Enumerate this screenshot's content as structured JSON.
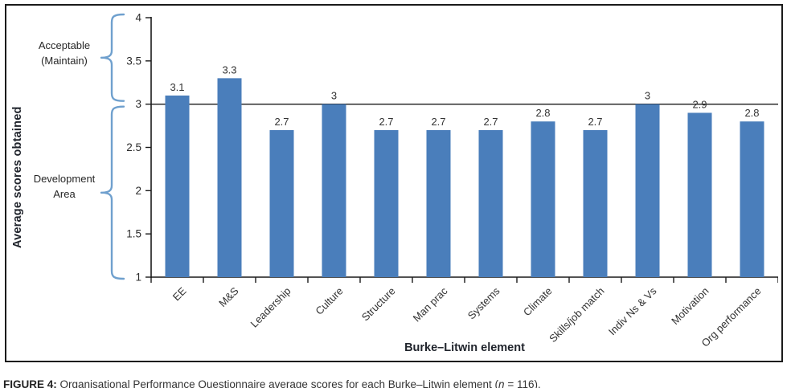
{
  "caption": {
    "label": "FIGURE 4:",
    "body": " Organisational Performance Questionnaire average scores for each Burke–Litwin element (",
    "n_symbol": "n",
    "tail": " = 116)."
  },
  "chart_data": {
    "type": "bar",
    "title": "",
    "xlabel": "Burke–Litwin element",
    "ylabel": "Average scores obtained",
    "categories": [
      "EE",
      "M&S",
      "Leadership",
      "Culture",
      "Structure",
      "Man prac",
      "Systems",
      "Climate",
      "Skills/job match",
      "Indiv Ns & Vs",
      "Motivation",
      "Org performance"
    ],
    "values": [
      3.1,
      3.3,
      2.7,
      3,
      2.7,
      2.7,
      2.7,
      2.8,
      2.7,
      3,
      2.9,
      2.8
    ],
    "value_labels": [
      "3.1",
      "3.3",
      "2.7",
      "3",
      "2.7",
      "2.7",
      "2.7",
      "2.8",
      "2.7",
      "3",
      "2.9",
      "2.8"
    ],
    "ylim": [
      1,
      4
    ],
    "ytick_values": [
      1,
      1.5,
      2,
      2.5,
      3,
      3.5,
      4
    ],
    "ytick_labels": [
      "1",
      "1.5",
      "2",
      "2.5",
      "3",
      "3.5",
      "4"
    ],
    "reference_line_y": 3,
    "grid": false,
    "legend": "none",
    "bar_color": "#4A7EBB",
    "brace_color": "#6FA0CE",
    "axis_color": "#1a1a1a",
    "regions": [
      {
        "label_lines": [
          "Acceptable",
          "(Maintain)"
        ],
        "from": 3,
        "to": 4
      },
      {
        "label_lines": [
          "Development",
          "Area"
        ],
        "from": 1,
        "to": 3
      }
    ]
  }
}
